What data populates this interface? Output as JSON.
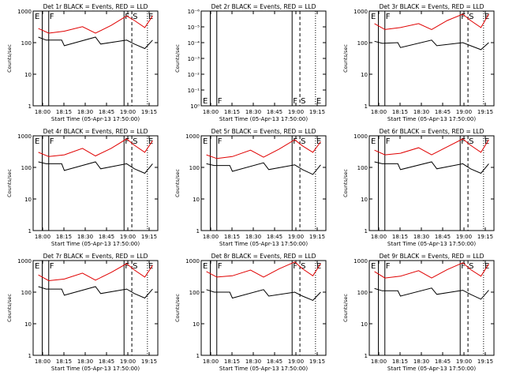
{
  "figure": {
    "xlabel": "Start Time (05-Apr-13 17:50:00)",
    "ylabel": "Counts/sec"
  },
  "chart_data": [
    {
      "type": "line",
      "title": "Det 1r BLACK = Events, RED = LLD",
      "x_ticks": [
        "18:00",
        "18:15",
        "18:30",
        "18:45",
        "19:00",
        "19:15"
      ],
      "y_ticks": [
        "1000",
        "100",
        "10",
        "1"
      ],
      "log_scale": true,
      "ylim": [
        1,
        1000
      ],
      "xlim_min": [
        0,
        38
      ],
      "markers": [
        {
          "label": "E",
          "t": 1.5,
          "style": "solid"
        },
        {
          "label": "F",
          "t": 4,
          "style": "solid"
        },
        {
          "label": "F",
          "t": 33,
          "style": "solid"
        },
        {
          "label": "S",
          "t": 36,
          "style": "dash"
        },
        {
          "label": "E",
          "t": 42,
          "style": "dot"
        }
      ],
      "series": [
        {
          "color": "#000000",
          "values": [
            [
              0,
              150
            ],
            [
              3,
              120
            ],
            [
              9,
              120
            ],
            [
              10,
              80
            ],
            [
              22,
              150
            ],
            [
              24,
              90
            ],
            [
              34,
              120
            ],
            [
              37,
              90
            ],
            [
              41,
              65
            ],
            [
              44,
              120
            ]
          ]
        },
        {
          "color": "#e00000",
          "values": [
            [
              0,
              280
            ],
            [
              4,
              200
            ],
            [
              10,
              230
            ],
            [
              17,
              320
            ],
            [
              22,
              200
            ],
            [
              28,
              350
            ],
            [
              34,
              700
            ],
            [
              37,
              500
            ],
            [
              41,
              300
            ],
            [
              44,
              700
            ]
          ]
        }
      ]
    },
    {
      "type": "line",
      "title": "Det 2r BLACK = Events, RED = LLD",
      "x_ticks": [
        "18:00",
        "18:15",
        "18:30",
        "18:45",
        "19:00",
        "19:15"
      ],
      "y_ticks": [
        "10⁻⁶",
        "10⁻⁵",
        "10⁻⁴",
        "10⁻³",
        "10⁻²",
        "10⁻¹",
        "10⁰"
      ],
      "log_scale": true,
      "ylim": [
        1e-06,
        1
      ],
      "markers": [
        {
          "label": "E",
          "t": 1.5,
          "style": "solid"
        },
        {
          "label": "F",
          "t": 4,
          "style": "solid"
        },
        {
          "label": "F",
          "t": 33,
          "style": "solid"
        },
        {
          "label": "S",
          "t": 36,
          "style": "dash"
        },
        {
          "label": "E",
          "t": 42,
          "style": "dot"
        }
      ],
      "series": []
    },
    {
      "type": "line",
      "title": "Det 3r BLACK = Events, RED = LLD",
      "x_ticks": [
        "18:00",
        "18:15",
        "18:30",
        "18:45",
        "19:00",
        "19:15"
      ],
      "y_ticks": [
        "1000",
        "100",
        "10",
        "1"
      ],
      "log_scale": true,
      "ylim": [
        1,
        1000
      ],
      "markers": [
        {
          "label": "E",
          "t": 1.5,
          "style": "solid"
        },
        {
          "label": "F",
          "t": 4,
          "style": "solid"
        },
        {
          "label": "F",
          "t": 33,
          "style": "solid"
        },
        {
          "label": "S",
          "t": 36,
          "style": "dash"
        },
        {
          "label": "E",
          "t": 42,
          "style": "dot"
        }
      ],
      "series": [
        {
          "color": "#000000",
          "values": [
            [
              0,
              110
            ],
            [
              3,
              95
            ],
            [
              9,
              100
            ],
            [
              10,
              70
            ],
            [
              22,
              120
            ],
            [
              24,
              80
            ],
            [
              34,
              100
            ],
            [
              37,
              80
            ],
            [
              41,
              60
            ],
            [
              44,
              100
            ]
          ]
        },
        {
          "color": "#e00000",
          "values": [
            [
              0,
              400
            ],
            [
              4,
              260
            ],
            [
              10,
              300
            ],
            [
              17,
              400
            ],
            [
              22,
              260
            ],
            [
              28,
              500
            ],
            [
              34,
              800
            ],
            [
              37,
              500
            ],
            [
              41,
              300
            ],
            [
              44,
              800
            ]
          ]
        }
      ]
    },
    {
      "type": "line",
      "title": "Det 4r BLACK = Events, RED = LLD",
      "x_ticks": [
        "18:00",
        "18:15",
        "18:30",
        "18:45",
        "19:00",
        "19:15"
      ],
      "y_ticks": [
        "1000",
        "100",
        "10",
        "1"
      ],
      "log_scale": true,
      "ylim": [
        1,
        1000
      ],
      "markers": [
        {
          "label": "E",
          "t": 1.5,
          "style": "solid"
        },
        {
          "label": "F",
          "t": 4,
          "style": "solid"
        },
        {
          "label": "F",
          "t": 33,
          "style": "solid"
        },
        {
          "label": "S",
          "t": 36,
          "style": "dash"
        },
        {
          "label": "E",
          "t": 42,
          "style": "dot"
        }
      ],
      "series": [
        {
          "color": "#000000",
          "values": [
            [
              0,
              150
            ],
            [
              3,
              130
            ],
            [
              9,
              130
            ],
            [
              10,
              80
            ],
            [
              22,
              150
            ],
            [
              24,
              90
            ],
            [
              34,
              130
            ],
            [
              37,
              90
            ],
            [
              41,
              65
            ],
            [
              44,
              130
            ]
          ]
        },
        {
          "color": "#e00000",
          "values": [
            [
              0,
              300
            ],
            [
              4,
              220
            ],
            [
              10,
              250
            ],
            [
              17,
              400
            ],
            [
              22,
              230
            ],
            [
              28,
              400
            ],
            [
              34,
              800
            ],
            [
              37,
              500
            ],
            [
              41,
              300
            ],
            [
              44,
              700
            ]
          ]
        }
      ]
    },
    {
      "type": "line",
      "title": "Det 5r BLACK = Events, RED = LLD",
      "x_ticks": [
        "18:00",
        "18:15",
        "18:30",
        "18:45",
        "19:00",
        "19:15"
      ],
      "y_ticks": [
        "1000",
        "100",
        "10",
        "1"
      ],
      "log_scale": true,
      "ylim": [
        1,
        1000
      ],
      "markers": [
        {
          "label": "E",
          "t": 1.5,
          "style": "solid"
        },
        {
          "label": "F",
          "t": 4,
          "style": "solid"
        },
        {
          "label": "F",
          "t": 33,
          "style": "solid"
        },
        {
          "label": "S",
          "t": 36,
          "style": "dash"
        },
        {
          "label": "E",
          "t": 42,
          "style": "dot"
        }
      ],
      "series": [
        {
          "color": "#000000",
          "values": [
            [
              0,
              130
            ],
            [
              3,
              115
            ],
            [
              9,
              115
            ],
            [
              10,
              75
            ],
            [
              22,
              140
            ],
            [
              24,
              85
            ],
            [
              34,
              120
            ],
            [
              37,
              85
            ],
            [
              41,
              60
            ],
            [
              44,
              120
            ]
          ]
        },
        {
          "color": "#e00000",
          "values": [
            [
              0,
              250
            ],
            [
              4,
              190
            ],
            [
              10,
              220
            ],
            [
              17,
              350
            ],
            [
              22,
              210
            ],
            [
              28,
              380
            ],
            [
              34,
              750
            ],
            [
              37,
              480
            ],
            [
              41,
              300
            ],
            [
              44,
              650
            ]
          ]
        }
      ]
    },
    {
      "type": "line",
      "title": "Det 6r BLACK = Events, RED = LLD",
      "x_ticks": [
        "18:00",
        "18:15",
        "18:30",
        "18:45",
        "19:00",
        "19:15"
      ],
      "y_ticks": [
        "1000",
        "100",
        "10",
        "1"
      ],
      "log_scale": true,
      "ylim": [
        1,
        1000
      ],
      "markers": [
        {
          "label": "E",
          "t": 1.5,
          "style": "solid"
        },
        {
          "label": "F",
          "t": 4,
          "style": "solid"
        },
        {
          "label": "F",
          "t": 33,
          "style": "solid"
        },
        {
          "label": "S",
          "t": 36,
          "style": "dash"
        },
        {
          "label": "E",
          "t": 42,
          "style": "dot"
        }
      ],
      "series": [
        {
          "color": "#000000",
          "values": [
            [
              0,
              150
            ],
            [
              3,
              130
            ],
            [
              9,
              130
            ],
            [
              10,
              85
            ],
            [
              22,
              150
            ],
            [
              24,
              90
            ],
            [
              34,
              130
            ],
            [
              37,
              90
            ],
            [
              41,
              65
            ],
            [
              44,
              130
            ]
          ]
        },
        {
          "color": "#e00000",
          "values": [
            [
              0,
              350
            ],
            [
              4,
              250
            ],
            [
              10,
              280
            ],
            [
              17,
              420
            ],
            [
              22,
              250
            ],
            [
              28,
              450
            ],
            [
              34,
              800
            ],
            [
              37,
              500
            ],
            [
              41,
              300
            ],
            [
              44,
              750
            ]
          ]
        }
      ]
    },
    {
      "type": "line",
      "title": "Det 7r BLACK = Events, RED = LLD",
      "x_ticks": [
        "18:00",
        "18:15",
        "18:30",
        "18:45",
        "19:00",
        "19:15"
      ],
      "y_ticks": [
        "1000",
        "100",
        "10",
        "1"
      ],
      "log_scale": true,
      "ylim": [
        1,
        1000
      ],
      "markers": [
        {
          "label": "E",
          "t": 1.5,
          "style": "solid"
        },
        {
          "label": "F",
          "t": 4,
          "style": "solid"
        },
        {
          "label": "F",
          "t": 33,
          "style": "solid"
        },
        {
          "label": "S",
          "t": 36,
          "style": "dash"
        },
        {
          "label": "E",
          "t": 42,
          "style": "dot"
        }
      ],
      "series": [
        {
          "color": "#000000",
          "values": [
            [
              0,
              150
            ],
            [
              3,
              125
            ],
            [
              9,
              125
            ],
            [
              10,
              80
            ],
            [
              22,
              150
            ],
            [
              24,
              90
            ],
            [
              34,
              125
            ],
            [
              37,
              90
            ],
            [
              41,
              65
            ],
            [
              44,
              125
            ]
          ]
        },
        {
          "color": "#e00000",
          "values": [
            [
              0,
              350
            ],
            [
              4,
              230
            ],
            [
              10,
              260
            ],
            [
              17,
              400
            ],
            [
              22,
              240
            ],
            [
              28,
              420
            ],
            [
              34,
              800
            ],
            [
              37,
              500
            ],
            [
              41,
              300
            ],
            [
              44,
              700
            ]
          ]
        }
      ]
    },
    {
      "type": "line",
      "title": "Det 8r BLACK = Events, RED = LLD",
      "x_ticks": [
        "18:00",
        "18:15",
        "18:30",
        "18:45",
        "19:00",
        "19:15"
      ],
      "y_ticks": [
        "1000",
        "100",
        "10",
        "1"
      ],
      "log_scale": true,
      "ylim": [
        1,
        1000
      ],
      "markers": [
        {
          "label": "E",
          "t": 1.5,
          "style": "solid"
        },
        {
          "label": "F",
          "t": 4,
          "style": "solid"
        },
        {
          "label": "F",
          "t": 33,
          "style": "solid"
        },
        {
          "label": "S",
          "t": 36,
          "style": "dash"
        },
        {
          "label": "E",
          "t": 42,
          "style": "dot"
        }
      ],
      "series": [
        {
          "color": "#000000",
          "values": [
            [
              0,
              120
            ],
            [
              3,
              100
            ],
            [
              9,
              100
            ],
            [
              10,
              65
            ],
            [
              22,
              120
            ],
            [
              24,
              75
            ],
            [
              34,
              100
            ],
            [
              37,
              75
            ],
            [
              41,
              55
            ],
            [
              44,
              100
            ]
          ]
        },
        {
          "color": "#e00000",
          "values": [
            [
              0,
              450
            ],
            [
              4,
              300
            ],
            [
              10,
              330
            ],
            [
              17,
              500
            ],
            [
              22,
              300
            ],
            [
              28,
              550
            ],
            [
              34,
              900
            ],
            [
              37,
              550
            ],
            [
              41,
              330
            ],
            [
              44,
              800
            ]
          ]
        }
      ]
    },
    {
      "type": "line",
      "title": "Det 9r BLACK = Events, RED = LLD",
      "x_ticks": [
        "18:00",
        "18:15",
        "18:30",
        "18:45",
        "19:00",
        "19:15"
      ],
      "y_ticks": [
        "1000",
        "100",
        "10",
        "1"
      ],
      "log_scale": true,
      "ylim": [
        1,
        1000
      ],
      "markers": [
        {
          "label": "E",
          "t": 1.5,
          "style": "solid"
        },
        {
          "label": "F",
          "t": 4,
          "style": "solid"
        },
        {
          "label": "F",
          "t": 33,
          "style": "solid"
        },
        {
          "label": "S",
          "t": 36,
          "style": "dash"
        },
        {
          "label": "E",
          "t": 42,
          "style": "dot"
        }
      ],
      "series": [
        {
          "color": "#000000",
          "values": [
            [
              0,
              130
            ],
            [
              3,
              110
            ],
            [
              9,
              110
            ],
            [
              10,
              75
            ],
            [
              22,
              135
            ],
            [
              24,
              85
            ],
            [
              34,
              115
            ],
            [
              37,
              85
            ],
            [
              41,
              60
            ],
            [
              44,
              115
            ]
          ]
        },
        {
          "color": "#e00000",
          "values": [
            [
              0,
              450
            ],
            [
              4,
              280
            ],
            [
              10,
              320
            ],
            [
              17,
              480
            ],
            [
              22,
              280
            ],
            [
              28,
              520
            ],
            [
              34,
              850
            ],
            [
              37,
              520
            ],
            [
              41,
              320
            ],
            [
              44,
              780
            ]
          ]
        }
      ]
    }
  ]
}
